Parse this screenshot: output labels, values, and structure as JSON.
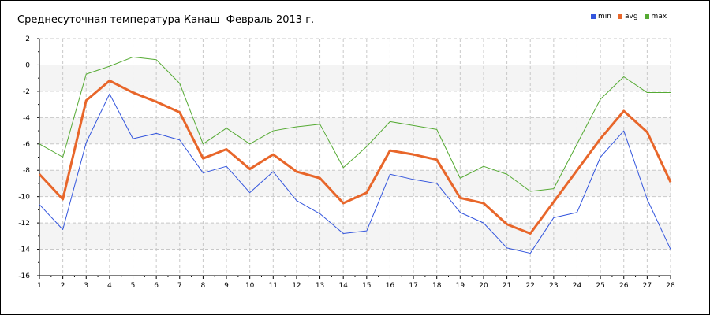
{
  "chart_data": {
    "type": "line",
    "title": "Среднесуточная температура Канаш  Февраль 2013 г.",
    "xlabel": "",
    "ylabel": "",
    "x": [
      1,
      2,
      3,
      4,
      5,
      6,
      7,
      8,
      9,
      10,
      11,
      12,
      13,
      14,
      15,
      16,
      17,
      18,
      19,
      20,
      21,
      22,
      23,
      24,
      25,
      26,
      27,
      28
    ],
    "xlim": [
      1,
      28
    ],
    "ylim": [
      -16,
      2
    ],
    "y_ticks": [
      2,
      0,
      -2,
      -4,
      -6,
      -8,
      -10,
      -12,
      -14,
      -16
    ],
    "grid": true,
    "legend_position": "top-right",
    "series": [
      {
        "name": "min",
        "color": "#3355dd",
        "values": [
          -10.6,
          -12.5,
          -5.9,
          -2.2,
          -5.6,
          -5.2,
          -5.7,
          -8.2,
          -7.7,
          -9.7,
          -8.1,
          -10.3,
          -11.3,
          -12.8,
          -12.6,
          -8.3,
          -8.7,
          -9.0,
          -11.2,
          -12.0,
          -13.9,
          -14.3,
          -11.6,
          -11.2,
          -7.0,
          -5.0,
          -10.2,
          -14.0
        ]
      },
      {
        "name": "avg",
        "color": "#e8662a",
        "values": [
          -8.3,
          -10.2,
          -2.7,
          -1.2,
          -2.1,
          -2.8,
          -3.6,
          -7.1,
          -6.4,
          -7.9,
          -6.8,
          -8.1,
          -8.6,
          -10.5,
          -9.7,
          -6.5,
          -6.8,
          -7.2,
          -10.1,
          -10.5,
          -12.1,
          -12.8,
          -10.4,
          -8.0,
          -5.6,
          -3.5,
          -5.1,
          -8.9
        ]
      },
      {
        "name": "max",
        "color": "#55aa33",
        "values": [
          -6.0,
          -7.0,
          -0.7,
          -0.1,
          0.6,
          0.4,
          -1.4,
          -6.0,
          -4.8,
          -6.0,
          -5.0,
          -4.7,
          -4.5,
          -7.8,
          -6.2,
          -4.3,
          -4.6,
          -4.9,
          -8.6,
          -7.7,
          -8.3,
          -9.6,
          -9.4,
          -6.0,
          -2.6,
          -0.9,
          -2.1,
          -2.1
        ]
      }
    ]
  }
}
